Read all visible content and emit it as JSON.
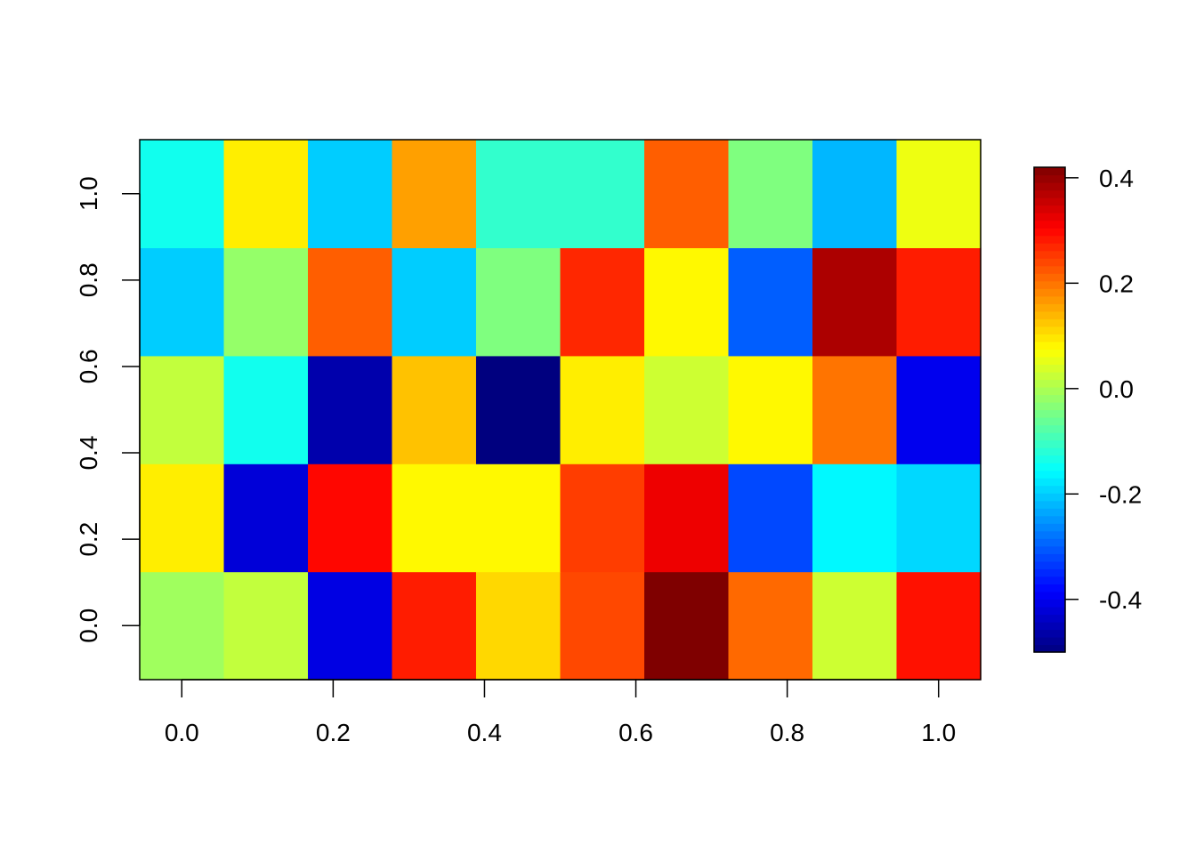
{
  "chart_data": {
    "type": "heatmap",
    "title": "",
    "xlabel": "",
    "ylabel": "",
    "x": [
      0.0,
      0.1111,
      0.2222,
      0.3333,
      0.4444,
      0.5556,
      0.6667,
      0.7778,
      0.8889,
      1.0
    ],
    "y": [
      0.0,
      0.25,
      0.5,
      0.75,
      1.0
    ],
    "xlim": [
      -0.0556,
      1.0556
    ],
    "ylim": [
      -0.125,
      1.125
    ],
    "x_ticks": [
      "0.0",
      "0.2",
      "0.4",
      "0.6",
      "0.8",
      "1.0"
    ],
    "x_tick_values": [
      0.0,
      0.2,
      0.4,
      0.6,
      0.8,
      1.0
    ],
    "y_ticks": [
      "0.0",
      "0.2",
      "0.4",
      "0.6",
      "0.8",
      "1.0"
    ],
    "y_tick_values": [
      0.0,
      0.2,
      0.4,
      0.6,
      0.8,
      1.0
    ],
    "z_rows_bottom_to_top": [
      [
        -0.01,
        0.02,
        -0.41,
        0.28,
        0.11,
        0.24,
        0.42,
        0.21,
        0.03,
        0.29
      ],
      [
        0.09,
        -0.42,
        0.3,
        0.08,
        0.08,
        0.25,
        0.32,
        -0.32,
        -0.16,
        -0.19
      ],
      [
        0.02,
        -0.14,
        -0.46,
        0.13,
        -0.5,
        0.09,
        0.03,
        0.08,
        0.2,
        -0.4
      ],
      [
        -0.2,
        -0.02,
        0.22,
        -0.2,
        -0.04,
        0.27,
        0.08,
        -0.3,
        0.38,
        0.28
      ],
      [
        -0.14,
        0.09,
        -0.2,
        0.16,
        -0.11,
        -0.11,
        0.22,
        -0.04,
        -0.22,
        0.06
      ]
    ],
    "zlim": [
      -0.5,
      0.42
    ],
    "colorbar": {
      "ticks": [
        "-0.4",
        "-0.2",
        "0.0",
        "0.2",
        "0.4"
      ],
      "tick_values": [
        -0.4,
        -0.2,
        0.0,
        0.2,
        0.4
      ],
      "placement": "right"
    },
    "colormap": [
      "#00007f",
      "#0000ff",
      "#007fff",
      "#00ffff",
      "#7fff7f",
      "#ffff00",
      "#ff7f00",
      "#ff0000",
      "#7f0000"
    ],
    "grid": false
  }
}
